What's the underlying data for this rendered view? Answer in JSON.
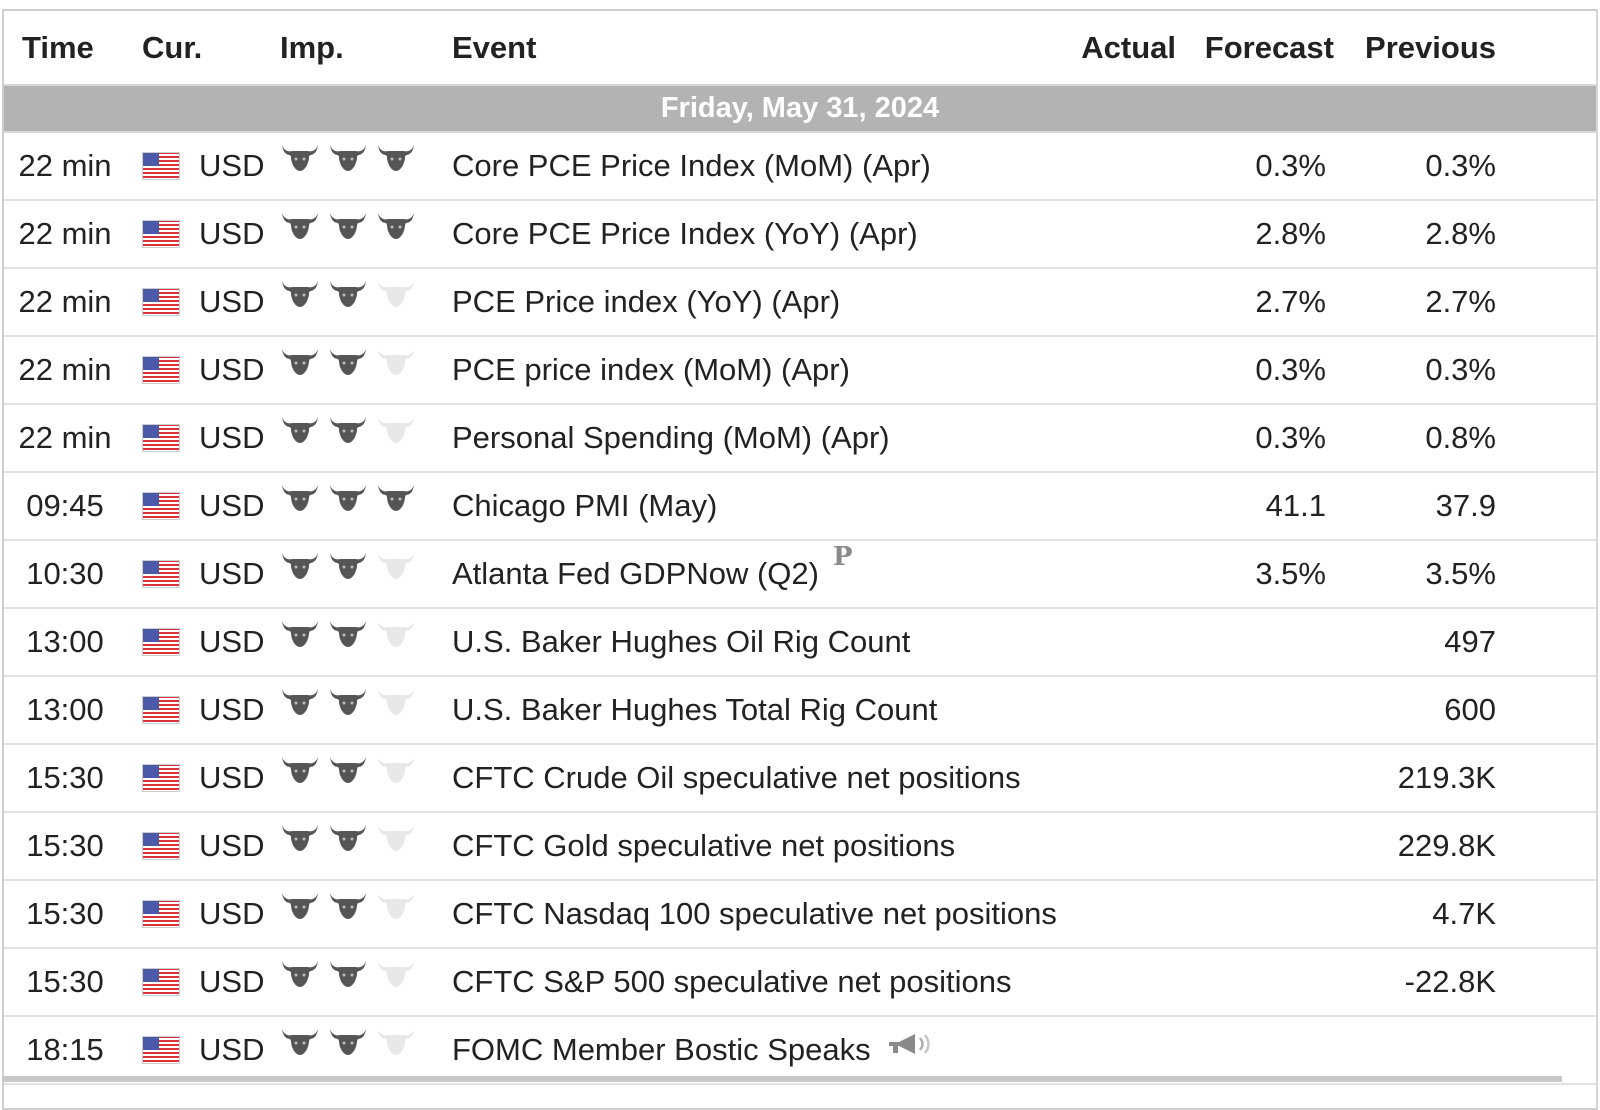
{
  "headers": {
    "time": "Time",
    "currency": "Cur.",
    "importance": "Imp.",
    "event": "Event",
    "actual": "Actual",
    "forecast": "Forecast",
    "previous": "Previous"
  },
  "day_label": "Friday, May 31, 2024",
  "colors": {
    "day_bar": "#b3b3b3",
    "bull_active": "#555555",
    "bull_inactive": "#e8e8e8"
  },
  "events": [
    {
      "time": "22 min",
      "currency": "USD",
      "flag": "us-flag-icon",
      "importance": 3,
      "event": "Core PCE Price Index (MoM) (Apr)",
      "actual": "",
      "forecast": "0.3%",
      "previous": "0.3%"
    },
    {
      "time": "22 min",
      "currency": "USD",
      "flag": "us-flag-icon",
      "importance": 3,
      "event": "Core PCE Price Index (YoY) (Apr)",
      "actual": "",
      "forecast": "2.8%",
      "previous": "2.8%"
    },
    {
      "time": "22 min",
      "currency": "USD",
      "flag": "us-flag-icon",
      "importance": 2,
      "event": "PCE Price index (YoY) (Apr)",
      "actual": "",
      "forecast": "2.7%",
      "previous": "2.7%"
    },
    {
      "time": "22 min",
      "currency": "USD",
      "flag": "us-flag-icon",
      "importance": 2,
      "event": "PCE price index (MoM) (Apr)",
      "actual": "",
      "forecast": "0.3%",
      "previous": "0.3%"
    },
    {
      "time": "22 min",
      "currency": "USD",
      "flag": "us-flag-icon",
      "importance": 2,
      "event": "Personal Spending (MoM) (Apr)",
      "actual": "",
      "forecast": "0.3%",
      "previous": "0.8%"
    },
    {
      "time": "09:45",
      "currency": "USD",
      "flag": "us-flag-icon",
      "importance": 3,
      "event": "Chicago PMI (May)",
      "actual": "",
      "forecast": "41.1",
      "previous": "37.9"
    },
    {
      "time": "10:30",
      "currency": "USD",
      "flag": "us-flag-icon",
      "importance": 2,
      "event": "Atlanta Fed GDPNow (Q2)",
      "badge": "P",
      "actual": "",
      "forecast": "3.5%",
      "previous": "3.5%"
    },
    {
      "time": "13:00",
      "currency": "USD",
      "flag": "us-flag-icon",
      "importance": 2,
      "event": "U.S. Baker Hughes Oil Rig Count",
      "actual": "",
      "forecast": "",
      "previous": "497"
    },
    {
      "time": "13:00",
      "currency": "USD",
      "flag": "us-flag-icon",
      "importance": 2,
      "event": "U.S. Baker Hughes Total Rig Count",
      "actual": "",
      "forecast": "",
      "previous": "600"
    },
    {
      "time": "15:30",
      "currency": "USD",
      "flag": "us-flag-icon",
      "importance": 2,
      "event": "CFTC Crude Oil speculative net positions",
      "actual": "",
      "forecast": "",
      "previous": "219.3K"
    },
    {
      "time": "15:30",
      "currency": "USD",
      "flag": "us-flag-icon",
      "importance": 2,
      "event": "CFTC Gold speculative net positions",
      "actual": "",
      "forecast": "",
      "previous": "229.8K"
    },
    {
      "time": "15:30",
      "currency": "USD",
      "flag": "us-flag-icon",
      "importance": 2,
      "event": "CFTC Nasdaq 100 speculative net positions",
      "actual": "",
      "forecast": "",
      "previous": "4.7K"
    },
    {
      "time": "15:30",
      "currency": "USD",
      "flag": "us-flag-icon",
      "importance": 2,
      "event": "CFTC S&P 500 speculative net positions",
      "actual": "",
      "forecast": "",
      "previous": "-22.8K"
    },
    {
      "time": "18:15",
      "currency": "USD",
      "flag": "us-flag-icon",
      "importance": 2,
      "event": "FOMC Member Bostic Speaks",
      "speech": "speech-icon",
      "actual": "",
      "forecast": "",
      "previous": ""
    }
  ]
}
